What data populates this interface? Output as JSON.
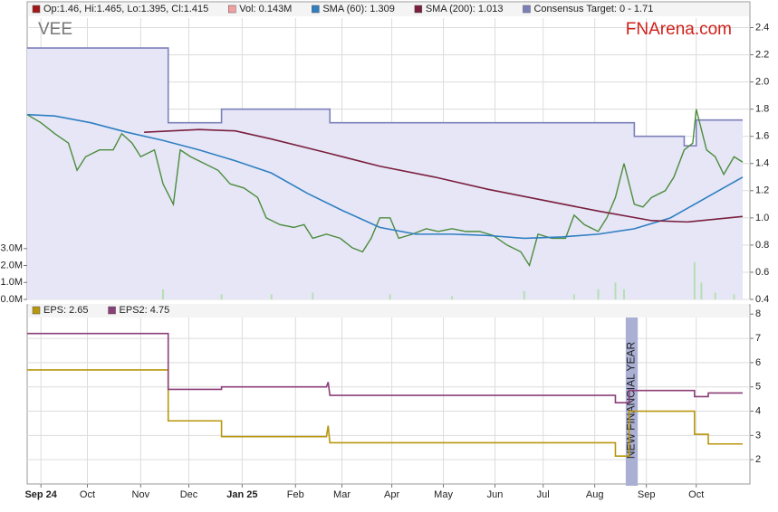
{
  "chart_data": [
    {
      "type": "line",
      "title": "VEE",
      "source": "FNArena.com",
      "xlim": [
        0,
        416
      ],
      "ylim": [
        0.4,
        2.47
      ],
      "yticks": [
        0.4,
        0.6,
        0.8,
        {
          "value": 1,
          "label": "1.0"
        },
        1.2,
        1.4,
        1.6,
        1.8,
        {
          "value": 2,
          "label": "2.0"
        },
        2.2,
        2.4
      ],
      "series": [
        {
          "name": "Op:1.46, Hi:1.465, Lo:1.395, Cl:1.415",
          "color": "#4c8c3c",
          "legend_color": "#a01818",
          "x": [
            0,
            8,
            16,
            24,
            29,
            34,
            42,
            50,
            55,
            61,
            66,
            74,
            79,
            85,
            89,
            95,
            103,
            111,
            118,
            126,
            134,
            139,
            147,
            155,
            161,
            166,
            174,
            182,
            189,
            195,
            200,
            205,
            211,
            216,
            224,
            232,
            239,
            247,
            255,
            263,
            271,
            279,
            287,
            292,
            297,
            305,
            313,
            318,
            324,
            332,
            337,
            342,
            347,
            353,
            358,
            363,
            371,
            376,
            382,
            387,
            389,
            395,
            400,
            405,
            411,
            416
          ],
          "values": [
            1.76,
            1.7,
            1.62,
            1.55,
            1.35,
            1.45,
            1.5,
            1.5,
            1.62,
            1.55,
            1.45,
            1.5,
            1.25,
            1.1,
            1.5,
            1.45,
            1.4,
            1.35,
            1.25,
            1.22,
            1.15,
            1,
            0.95,
            0.93,
            0.95,
            0.85,
            0.88,
            0.85,
            0.78,
            0.75,
            0.85,
            1,
            1,
            0.85,
            0.88,
            0.92,
            0.9,
            0.92,
            0.9,
            0.9,
            0.87,
            0.8,
            0.75,
            0.65,
            0.88,
            0.85,
            0.85,
            1.02,
            0.95,
            0.9,
            1,
            1.15,
            1.4,
            1.1,
            1.08,
            1.15,
            1.2,
            1.3,
            1.5,
            1.55,
            1.8,
            1.5,
            1.45,
            1.32,
            1.45,
            1.41
          ]
        },
        {
          "name": "SMA (60): 1.309",
          "color": "#2f7fc1",
          "x": [
            0,
            16,
            37,
            58,
            79,
            100,
            121,
            142,
            163,
            184,
            205,
            226,
            247,
            268,
            289,
            311,
            332,
            353,
            374,
            395,
            416
          ],
          "values": [
            1.76,
            1.75,
            1.7,
            1.63,
            1.57,
            1.5,
            1.42,
            1.33,
            1.18,
            1.05,
            0.93,
            0.88,
            0.88,
            0.87,
            0.85,
            0.86,
            0.88,
            0.92,
            1,
            1.15,
            1.3
          ]
        },
        {
          "name": "SMA (200): 1.013",
          "color": "#7a1f3d",
          "x": [
            68,
            100,
            121,
            142,
            174,
            205,
            237,
            268,
            300,
            332,
            363,
            384,
            416
          ],
          "values": [
            1.63,
            1.65,
            1.64,
            1.58,
            1.48,
            1.38,
            1.3,
            1.21,
            1.13,
            1.05,
            0.98,
            0.97,
            1.01
          ]
        },
        {
          "name": "Consensus Target: 0 - 1.71",
          "color": "#7c80b8",
          "fill": "#e6e6f7",
          "x": [
            0,
            82,
            82,
            113,
            113,
            176,
            176,
            353,
            353,
            382,
            382,
            389,
            389,
            416
          ],
          "values": [
            2.25,
            2.25,
            1.7,
            1.7,
            1.8,
            1.8,
            1.7,
            1.7,
            1.6,
            1.6,
            1.53,
            1.53,
            1.72,
            1.72
          ]
        }
      ],
      "volume": {
        "name": "Vol: 0.143M",
        "color": "#f2a0a0",
        "bar_color": "#b6e0b0",
        "ylim": [
          0,
          16.6
        ],
        "yticks": [
          {
            "value": 0,
            "label": "0.0M"
          },
          {
            "value": 1,
            "label": "1.0M"
          },
          {
            "value": 2,
            "label": "2.0M"
          },
          {
            "value": 3,
            "label": "3.0M"
          }
        ],
        "x": [
          79,
          113,
          142,
          166,
          211,
          247,
          289,
          318,
          332,
          342,
          347,
          388,
          392,
          400,
          411
        ],
        "values": [
          0.6,
          0.3,
          0.3,
          0.4,
          0.3,
          0.2,
          0.5,
          0.3,
          0.6,
          1,
          0.6,
          2.2,
          1,
          0.4,
          0.3
        ]
      }
    },
    {
      "type": "line",
      "xlim": [
        0,
        416
      ],
      "xticks": [
        {
          "value": 8,
          "label": "Sep 24"
        },
        {
          "value": 35,
          "label": "Oct"
        },
        {
          "value": 66,
          "label": "Nov"
        },
        {
          "value": 94,
          "label": "Dec"
        },
        {
          "value": 125,
          "label": "Jan 25"
        },
        {
          "value": 156,
          "label": "Feb"
        },
        {
          "value": 183,
          "label": "Mar"
        },
        {
          "value": 212,
          "label": "Apr"
        },
        {
          "value": 242,
          "label": "May"
        },
        {
          "value": 272,
          "label": "Jun"
        },
        {
          "value": 300,
          "label": "Jul"
        },
        {
          "value": 330,
          "label": "Aug"
        },
        {
          "value": 360,
          "label": "Sep"
        },
        {
          "value": 389,
          "label": "Oct"
        }
      ],
      "ylim": [
        1,
        8.27
      ],
      "yticks": [
        2,
        3,
        4,
        5,
        6,
        7,
        8
      ],
      "series": [
        {
          "name": "EPS: 2.65",
          "color": "#b8960e",
          "x": [
            0,
            82,
            82,
            113,
            113,
            174,
            175,
            176,
            342,
            342,
            350,
            350,
            388,
            388,
            396,
            396,
            416
          ],
          "values": [
            5.7,
            5.7,
            3.6,
            3.6,
            2.95,
            2.95,
            3.4,
            2.7,
            2.7,
            2.15,
            2.15,
            4,
            4,
            3.05,
            3.05,
            2.65,
            2.65
          ]
        },
        {
          "name": "EPS2: 4.75",
          "color": "#8b3f78",
          "x": [
            0,
            82,
            82,
            113,
            113,
            174,
            175,
            176,
            342,
            342,
            350,
            350,
            388,
            388,
            396,
            396,
            416
          ],
          "values": [
            7.2,
            7.2,
            4.9,
            4.9,
            5,
            5,
            5.2,
            4.65,
            4.65,
            4.35,
            4.35,
            4.85,
            4.85,
            4.6,
            4.6,
            4.75,
            4.75
          ]
        }
      ],
      "annotation": {
        "text": "NEW FINANCIAL YEAR",
        "x": [
          348,
          355
        ],
        "color": "#aab0d4"
      }
    }
  ]
}
